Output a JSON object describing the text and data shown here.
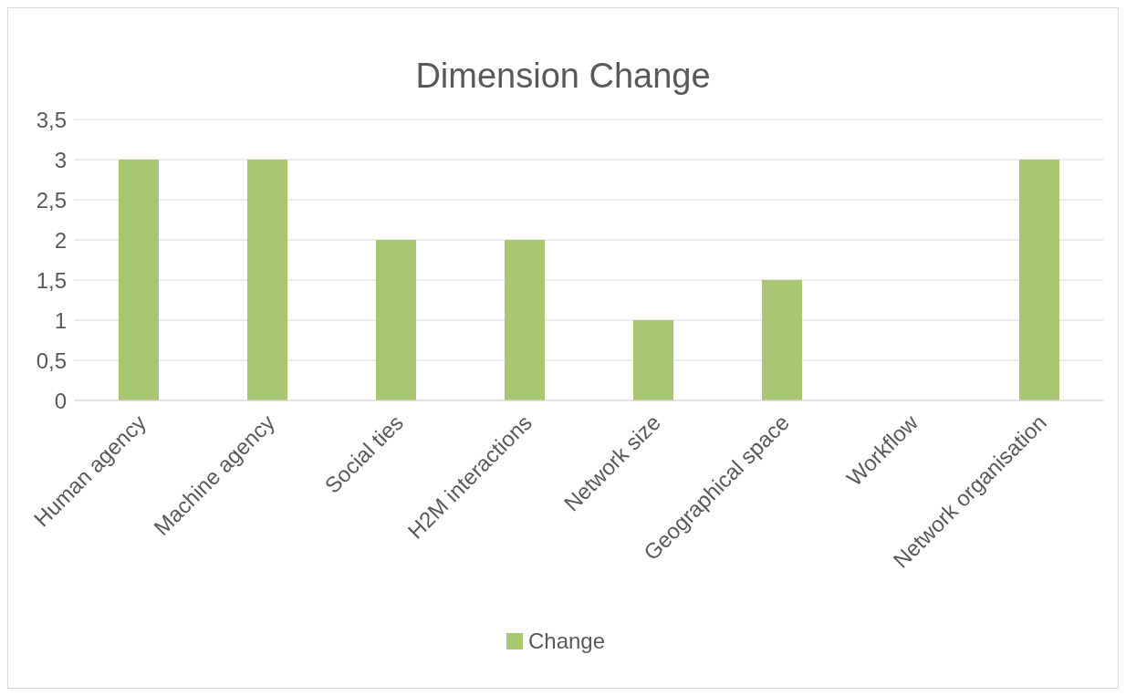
{
  "chart_data": {
    "type": "bar",
    "title": "Dimension Change",
    "categories": [
      "Human agency",
      "Machine agency",
      "Social ties",
      "H2M interactions",
      "Network size",
      "Geographical space",
      "Workflow",
      "Network organisation"
    ],
    "series": [
      {
        "name": "Change",
        "color": "#a9c673",
        "values": [
          3,
          3,
          2,
          2,
          1,
          1.5,
          0,
          3
        ]
      }
    ],
    "ylim": [
      0,
      3.5
    ],
    "yticks": [
      0,
      {
        "value": 0.5,
        "label": "0,5"
      },
      1,
      {
        "value": 1.5,
        "label": "1,5"
      },
      2,
      {
        "value": 2.5,
        "label": "2,5"
      },
      3,
      {
        "value": 3.5,
        "label": "3,5"
      }
    ],
    "grid": "y",
    "legend": "bottom"
  }
}
